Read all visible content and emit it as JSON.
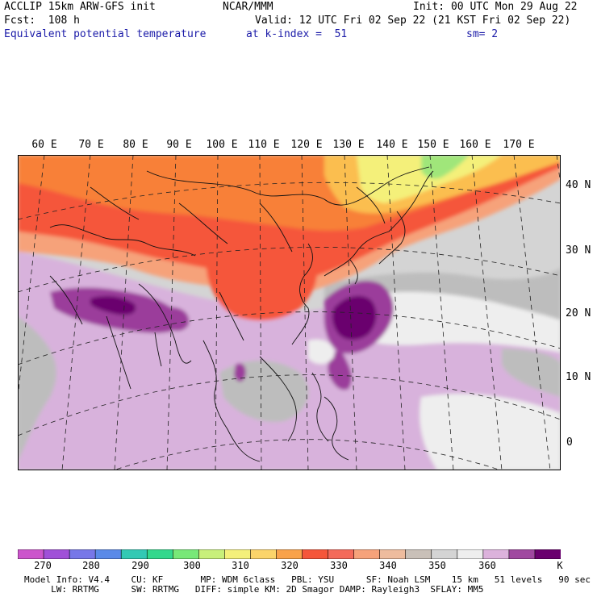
{
  "header": {
    "line1_left": "ACCLIP 15km ARW-GFS init",
    "line1_center": "NCAR/MMM",
    "line1_right": "Init: 00 UTC Mon 29 Aug 22",
    "line2_left": "Fcst:  108 h",
    "line2_right": "Valid: 12 UTC Fri 02 Sep 22 (21 KST Fri 02 Sep 22)",
    "line3_left": "Equivalent potential temperature",
    "line3_center": "at k-index =  51",
    "line3_right": "sm= 2"
  },
  "map": {
    "longitude_labels": [
      "60 E",
      "70 E",
      "80 E",
      "90 E",
      "100 E",
      "110 E",
      "120 E",
      "130 E",
      "140 E",
      "150 E",
      "160 E",
      "170 E"
    ],
    "latitude_labels": [
      "40 N",
      "30 N",
      "20 N",
      "10 N",
      "0"
    ],
    "colors": {
      "dark_purple": "#6a006e",
      "purple": "#9b3c9b",
      "light_purple": "#d8b2dc",
      "very_light": "#eeeeee",
      "light_gray": "#d4d4d4",
      "gray": "#bdbdbd",
      "salmon": "#f6a27a",
      "orange_red": "#f5563a",
      "orange": "#f88038",
      "yellow_orange": "#fbbe50",
      "yellow": "#f4f07a",
      "green": "#a0e67a"
    }
  },
  "colorbar": {
    "unit": "K",
    "labels": [
      "270",
      "280",
      "290",
      "300",
      "310",
      "320",
      "330",
      "340",
      "350",
      "360"
    ],
    "colors": [
      "#cc55cc",
      "#a050d8",
      "#7777e8",
      "#5a8ae8",
      "#33c9b4",
      "#33d88c",
      "#78e878",
      "#c8f07a",
      "#f4f07a",
      "#fbd46a",
      "#f9a24a",
      "#f5563a",
      "#f46a5a",
      "#f6a27a",
      "#eebc9e",
      "#c9c0b8",
      "#d4d4d4",
      "#eeeeee",
      "#dcb2dc",
      "#a048a0",
      "#6a006e"
    ]
  },
  "footer": {
    "line1": "Model Info: V4.4    CU: KF       MP: WDM 6class   PBL: YSU      SF: Noah LSM    15 km   51 levels   90 sec",
    "line2": "     LW: RRTMG      SW: RRTMG   DIFF: simple KM: 2D Smagor DAMP: Rayleigh3  SFLAY: MM5"
  }
}
